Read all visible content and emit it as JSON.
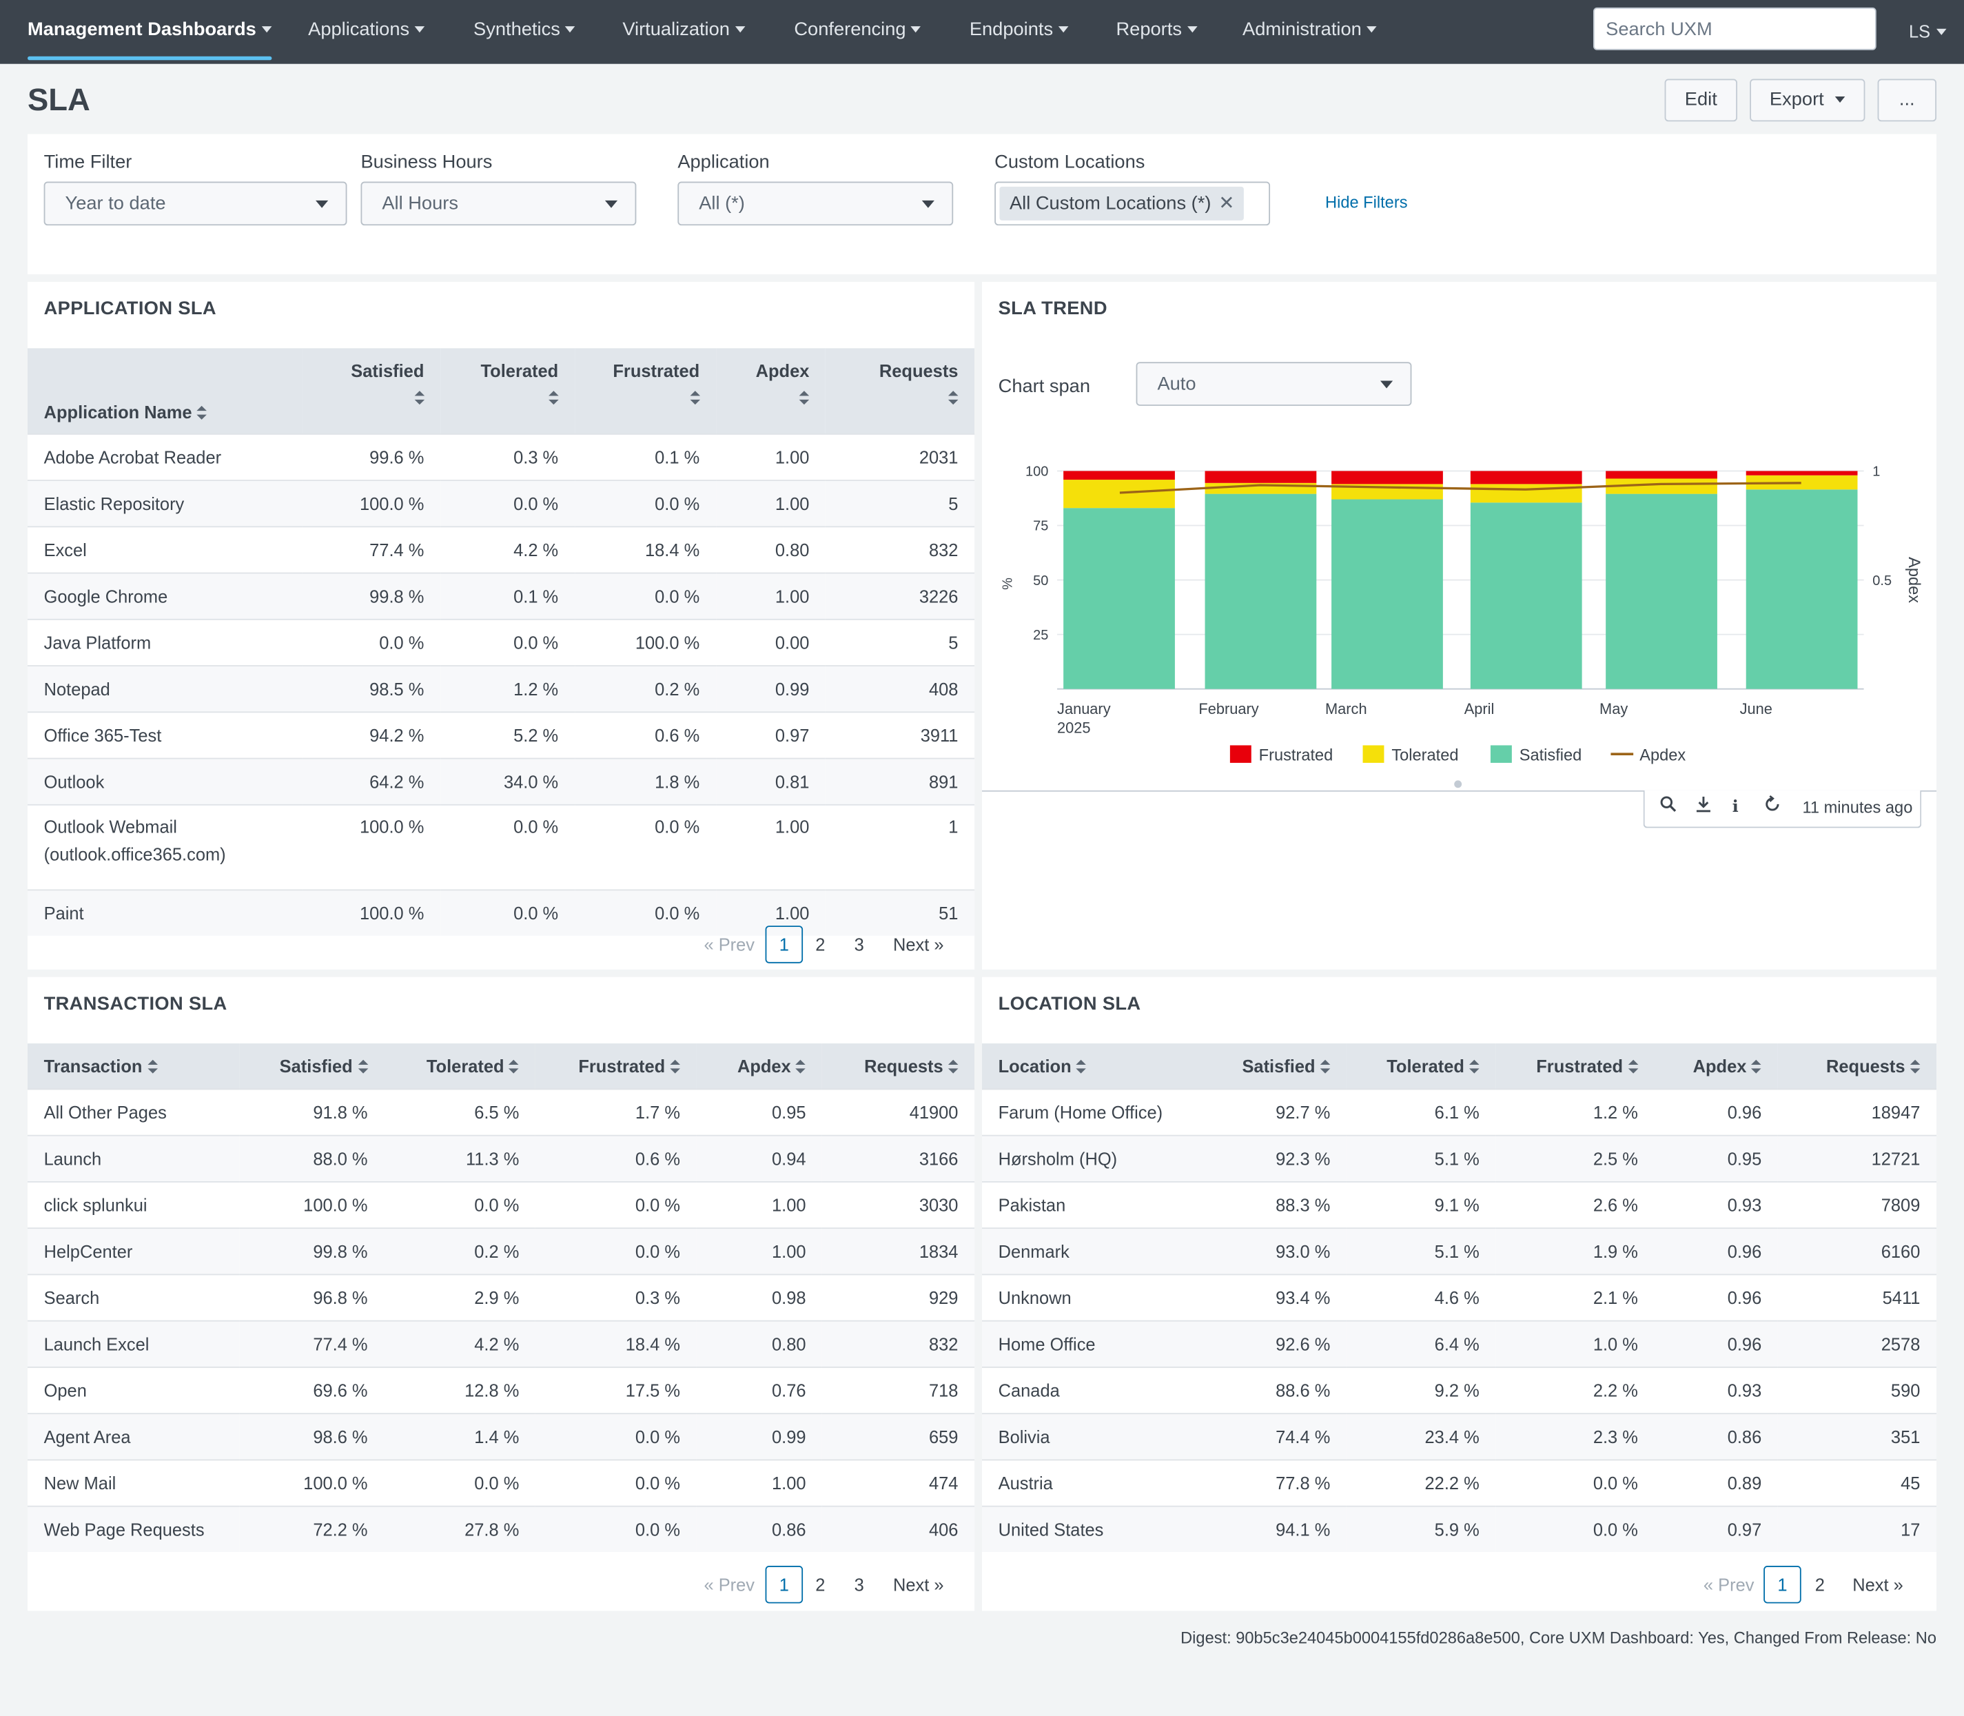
{
  "nav": {
    "items": [
      {
        "label": "Management Dashboards"
      },
      {
        "label": "Applications"
      },
      {
        "label": "Synthetics"
      },
      {
        "label": "Virtualization"
      },
      {
        "label": "Conferencing"
      },
      {
        "label": "Endpoints"
      },
      {
        "label": "Reports"
      },
      {
        "label": "Administration"
      }
    ],
    "search_placeholder": "Search UXM",
    "user": "LS"
  },
  "page": {
    "title": "SLA",
    "edit_label": "Edit",
    "export_label": "Export",
    "more_label": "..."
  },
  "filters": {
    "time": {
      "label": "Time Filter",
      "value": "Year to date"
    },
    "hours": {
      "label": "Business Hours",
      "value": "All Hours"
    },
    "application": {
      "label": "Application",
      "value": "All (*)"
    },
    "locations": {
      "label": "Custom Locations",
      "chip": "All Custom Locations (*)"
    },
    "hide_label": "Hide Filters"
  },
  "application_sla": {
    "title": "APPLICATION SLA",
    "columns": [
      "Application Name",
      "Satisfied",
      "Tolerated",
      "Frustrated",
      "Apdex",
      "Requests"
    ],
    "rows": [
      [
        "Adobe Acrobat Reader",
        "99.6 %",
        "0.3 %",
        "0.1 %",
        "1.00",
        "2031"
      ],
      [
        "Elastic Repository",
        "100.0 %",
        "0.0 %",
        "0.0 %",
        "1.00",
        "5"
      ],
      [
        "Excel",
        "77.4 %",
        "4.2 %",
        "18.4 %",
        "0.80",
        "832"
      ],
      [
        "Google Chrome",
        "99.8 %",
        "0.1 %",
        "0.0 %",
        "1.00",
        "3226"
      ],
      [
        "Java Platform",
        "0.0 %",
        "0.0 %",
        "100.0 %",
        "0.00",
        "5"
      ],
      [
        "Notepad",
        "98.5 %",
        "1.2 %",
        "0.2 %",
        "0.99",
        "408"
      ],
      [
        "Office 365-Test",
        "94.2 %",
        "5.2 %",
        "0.6 %",
        "0.97",
        "3911"
      ],
      [
        "Outlook",
        "64.2 %",
        "34.0 %",
        "1.8 %",
        "0.81",
        "891"
      ],
      [
        "Outlook Webmail (outlook.office365.com)",
        "100.0 %",
        "0.0 %",
        "0.0 %",
        "1.00",
        "1"
      ],
      [
        "Paint",
        "100.0 %",
        "0.0 %",
        "0.0 %",
        "1.00",
        "51"
      ]
    ],
    "pager": {
      "prev": "« Prev",
      "pages": [
        "1",
        "2",
        "3"
      ],
      "next": "Next »"
    }
  },
  "sla_trend": {
    "title": "SLA TREND",
    "span_label": "Chart span",
    "span_value": "Auto",
    "toolbar_time": "11 minutes ago",
    "icons": [
      "search-icon",
      "download-icon",
      "info-icon",
      "refresh-icon"
    ],
    "colors": {
      "Frustrated": "#e8000b",
      "Tolerated": "#f5e00a",
      "Satisfied": "#65cfa9",
      "Apdex": "#9c6418"
    }
  },
  "chart_data": {
    "type": "bar",
    "stacked": true,
    "categories": [
      "January\n2025",
      "February",
      "March",
      "April",
      "May",
      "June"
    ],
    "series": [
      {
        "name": "Satisfied",
        "values": [
          83,
          89.5,
          87,
          85.5,
          89.5,
          91.5
        ]
      },
      {
        "name": "Tolerated",
        "values": [
          13,
          5,
          7,
          8.5,
          7,
          6.5
        ]
      },
      {
        "name": "Frustrated",
        "values": [
          4,
          5.5,
          6,
          6,
          3.5,
          2
        ]
      },
      {
        "name": "Apdex",
        "axis": "right",
        "type": "line",
        "values": [
          0.9,
          0.935,
          0.925,
          0.915,
          0.94,
          0.945
        ]
      }
    ],
    "ylabel": "%",
    "y2label": "Apdex",
    "ylim": [
      0,
      100
    ],
    "y2lim": [
      0,
      1
    ],
    "yticks": [
      25,
      50,
      75,
      100
    ],
    "y2ticks": [
      0.5,
      1
    ],
    "legend": [
      "Frustrated",
      "Tolerated",
      "Satisfied",
      "Apdex"
    ],
    "legend_position": "bottom"
  },
  "transaction_sla": {
    "title": "TRANSACTION SLA",
    "columns": [
      "Transaction",
      "Satisfied",
      "Tolerated",
      "Frustrated",
      "Apdex",
      "Requests"
    ],
    "rows": [
      [
        "All Other Pages",
        "91.8 %",
        "6.5 %",
        "1.7 %",
        "0.95",
        "41900"
      ],
      [
        "Launch",
        "88.0 %",
        "11.3 %",
        "0.6 %",
        "0.94",
        "3166"
      ],
      [
        "click splunkui",
        "100.0 %",
        "0.0 %",
        "0.0 %",
        "1.00",
        "3030"
      ],
      [
        "HelpCenter",
        "99.8 %",
        "0.2 %",
        "0.0 %",
        "1.00",
        "1834"
      ],
      [
        "Search",
        "96.8 %",
        "2.9 %",
        "0.3 %",
        "0.98",
        "929"
      ],
      [
        "Launch Excel",
        "77.4 %",
        "4.2 %",
        "18.4 %",
        "0.80",
        "832"
      ],
      [
        "Open",
        "69.6 %",
        "12.8 %",
        "17.5 %",
        "0.76",
        "718"
      ],
      [
        "Agent Area",
        "98.6 %",
        "1.4 %",
        "0.0 %",
        "0.99",
        "659"
      ],
      [
        "New Mail",
        "100.0 %",
        "0.0 %",
        "0.0 %",
        "1.00",
        "474"
      ],
      [
        "Web Page Requests",
        "72.2 %",
        "27.8 %",
        "0.0 %",
        "0.86",
        "406"
      ]
    ],
    "pager": {
      "prev": "« Prev",
      "pages": [
        "1",
        "2",
        "3"
      ],
      "next": "Next »"
    }
  },
  "location_sla": {
    "title": "LOCATION SLA",
    "columns": [
      "Location",
      "Satisfied",
      "Tolerated",
      "Frustrated",
      "Apdex",
      "Requests"
    ],
    "rows": [
      [
        "Farum (Home Office)",
        "92.7 %",
        "6.1 %",
        "1.2 %",
        "0.96",
        "18947"
      ],
      [
        "Hørsholm (HQ)",
        "92.3 %",
        "5.1 %",
        "2.5 %",
        "0.95",
        "12721"
      ],
      [
        "Pakistan",
        "88.3 %",
        "9.1 %",
        "2.6 %",
        "0.93",
        "7809"
      ],
      [
        "Denmark",
        "93.0 %",
        "5.1 %",
        "1.9 %",
        "0.96",
        "6160"
      ],
      [
        "Unknown",
        "93.4 %",
        "4.6 %",
        "2.1 %",
        "0.96",
        "5411"
      ],
      [
        "Home Office",
        "92.6 %",
        "6.4 %",
        "1.0 %",
        "0.96",
        "2578"
      ],
      [
        "Canada",
        "88.6 %",
        "9.2 %",
        "2.2 %",
        "0.93",
        "590"
      ],
      [
        "Bolivia",
        "74.4 %",
        "23.4 %",
        "2.3 %",
        "0.86",
        "351"
      ],
      [
        "Austria",
        "77.8 %",
        "22.2 %",
        "0.0 %",
        "0.89",
        "45"
      ],
      [
        "United States",
        "94.1 %",
        "5.9 %",
        "0.0 %",
        "0.97",
        "17"
      ]
    ],
    "pager": {
      "prev": "« Prev",
      "pages": [
        "1",
        "2"
      ],
      "next": "Next »"
    }
  },
  "footer": "Digest: 90b5c3e24045b0004155fd0286a8e500, Core UXM Dashboard: Yes, Changed From Release: No"
}
